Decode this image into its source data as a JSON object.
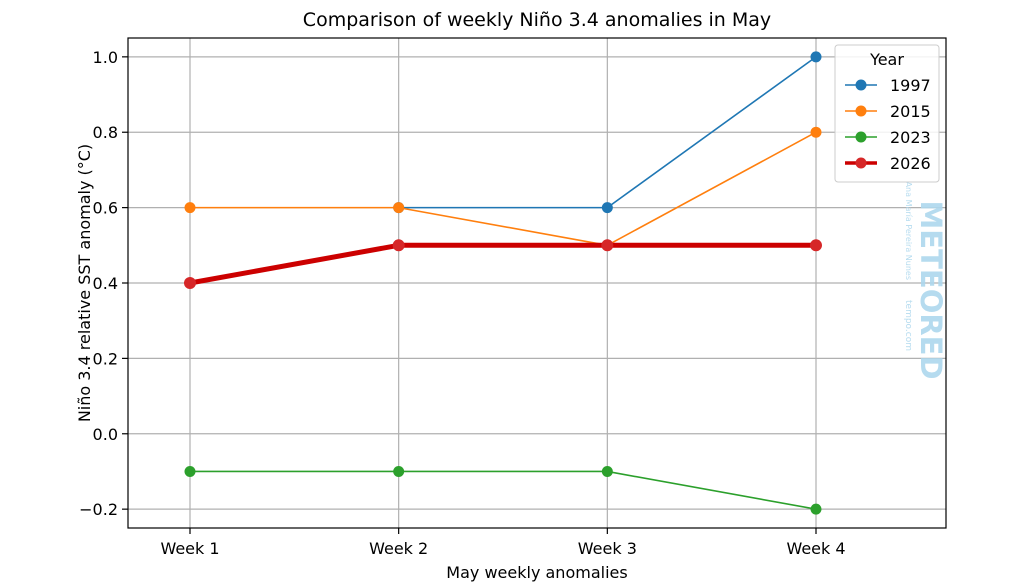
{
  "chart_data": {
    "type": "line",
    "title": "Comparison of weekly Niño 3.4 anomalies in May",
    "xlabel": "May weekly anomalies",
    "ylabel": "Niño 3.4 relative SST anomaly (°C)",
    "categories": [
      "Week 1",
      "Week 2",
      "Week 3",
      "Week 4"
    ],
    "ylim": [
      -0.25,
      1.05
    ],
    "yticks": [
      -0.2,
      0.0,
      0.2,
      0.4,
      0.6,
      0.8,
      1.0
    ],
    "ytick_labels": [
      "−0.2",
      "0.0",
      "0.2",
      "0.4",
      "0.6",
      "0.8",
      "1.0"
    ],
    "grid": true,
    "legend": {
      "title": "Year",
      "placement": "top-right"
    },
    "series": [
      {
        "name": "1997",
        "color": "#1f77b4",
        "values": [
          null,
          0.6,
          0.6,
          1.0
        ]
      },
      {
        "name": "2015",
        "color": "#ff7f0e",
        "values": [
          0.6,
          0.6,
          0.5,
          0.8
        ]
      },
      {
        "name": "2023",
        "color": "#2ca02c",
        "values": [
          -0.1,
          -0.1,
          -0.1,
          -0.2
        ]
      },
      {
        "name": "2026",
        "color": "#d62728",
        "line_color": "#cc0000",
        "emphasis": true,
        "values": [
          0.4,
          0.5,
          0.5,
          0.5
        ]
      }
    ]
  },
  "watermark": {
    "brand": "METEORED",
    "author": "Ana María Pereira Nunes",
    "site": "tempo.com"
  }
}
